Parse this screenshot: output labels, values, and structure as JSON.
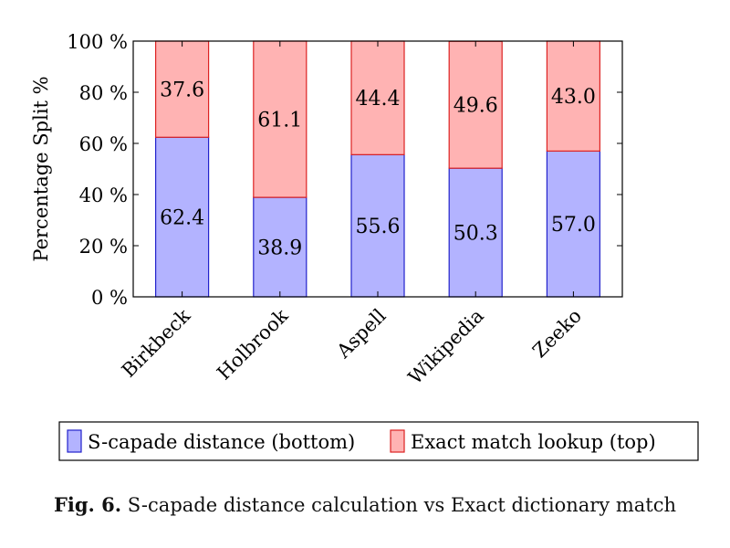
{
  "chart_data": {
    "type": "bar",
    "stacked": true,
    "categories": [
      "Birkbeck",
      "Holbrook",
      "Aspell",
      "Wikipedia",
      "Zeeko"
    ],
    "series": [
      {
        "name": "S-capade distance (bottom)",
        "values": [
          62.4,
          38.9,
          55.6,
          50.3,
          57.0
        ],
        "labels": [
          "62.4",
          "38.9",
          "55.6",
          "50.3",
          "57.0"
        ],
        "color": "#b3b3ff",
        "stroke": "#2222cc"
      },
      {
        "name": "Exact match lookup (top)",
        "values": [
          37.6,
          61.1,
          44.4,
          49.6,
          43.0
        ],
        "labels": [
          "37.6",
          "61.1",
          "44.4",
          "49.6",
          "43.0"
        ],
        "color": "#ffb3b3",
        "stroke": "#dd2222"
      }
    ],
    "ylabel": "Percentage Split %",
    "ylim": [
      0,
      100
    ],
    "yticks": [
      0,
      20,
      40,
      60,
      80,
      100
    ],
    "ytick_labels": [
      "0 %",
      "20 %",
      "40 %",
      "60 %",
      "80 %",
      "100 %"
    ],
    "grid": false,
    "legend": "bottom"
  },
  "caption": {
    "label": "Fig. 6.",
    "text": "S-capade distance calculation vs Exact dictionary match"
  }
}
